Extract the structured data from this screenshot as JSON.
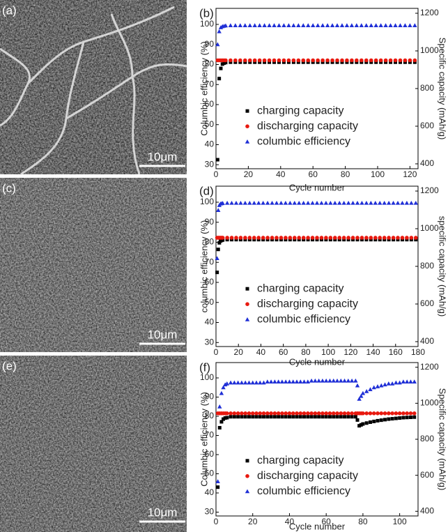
{
  "images": [
    {
      "panel_label": "(a)",
      "scale_bar": "10μm"
    },
    {
      "panel_label": "(c)",
      "scale_bar": "10μm"
    },
    {
      "panel_label": "(e)",
      "scale_bar": "10μm"
    }
  ],
  "chart_data": [
    {
      "type": "scatter",
      "panel_label": "(b)",
      "xlabel": "Cycle number",
      "ylabel": "Columbic efficiency (%)",
      "y2label": "Specific capacity (mAh/g)",
      "xlim": [
        0,
        125
      ],
      "xticks": [
        0,
        20,
        40,
        60,
        80,
        100,
        120
      ],
      "ylim": [
        28,
        108
      ],
      "yticks": [
        30,
        40,
        50,
        60,
        70,
        80,
        90,
        100
      ],
      "y2lim": [
        374,
        1226
      ],
      "y2ticks": [
        400,
        600,
        800,
        1000,
        1200
      ],
      "legend": "center",
      "x": [
        1,
        2,
        3,
        4,
        5,
        6,
        9,
        12,
        15,
        18,
        21,
        24,
        27,
        30,
        33,
        36,
        39,
        42,
        45,
        48,
        51,
        54,
        57,
        60,
        63,
        66,
        69,
        72,
        75,
        78,
        81,
        84,
        87,
        90,
        93,
        96,
        99,
        102,
        105,
        108,
        111,
        114,
        117,
        120,
        123
      ],
      "series": [
        {
          "name": "charging capacity",
          "color": "#000000",
          "marker": "square",
          "axis": "y2",
          "values": [
            422,
            853,
            907,
            930,
            935,
            938,
            940,
            940,
            940,
            940,
            940,
            940,
            940,
            940,
            940,
            940,
            940,
            940,
            940,
            940,
            940,
            940,
            940,
            940,
            940,
            940,
            940,
            940,
            940,
            940,
            940,
            940,
            940,
            940,
            940,
            940,
            940,
            940,
            940,
            940,
            940,
            940,
            940,
            940,
            940
          ]
        },
        {
          "name": "discharging capacity",
          "color": "#e8190f",
          "marker": "circle",
          "axis": "y2",
          "values": [
            950,
            950,
            950,
            950,
            950,
            950,
            950,
            950,
            950,
            950,
            950,
            950,
            950,
            950,
            950,
            950,
            950,
            950,
            950,
            950,
            950,
            950,
            950,
            950,
            950,
            950,
            950,
            950,
            950,
            950,
            950,
            950,
            950,
            950,
            950,
            950,
            950,
            950,
            950,
            950,
            950,
            950,
            950,
            950,
            950
          ]
        },
        {
          "name": "columbic efficiency",
          "color": "#1f2fd6",
          "marker": "triangle",
          "axis": "y",
          "values": [
            90,
            96.5,
            98.5,
            99,
            99.2,
            99.4,
            99.5,
            99.5,
            99.5,
            99.5,
            99.5,
            99.5,
            99.5,
            99.5,
            99.5,
            99.5,
            99.5,
            99.5,
            99.5,
            99.5,
            99.5,
            99.5,
            99.5,
            99.5,
            99.5,
            99.5,
            99.5,
            99.5,
            99.5,
            99.5,
            99.5,
            99.5,
            99.5,
            99.5,
            99.5,
            99.5,
            99.5,
            99.5,
            99.5,
            99.5,
            99.5,
            99.5,
            99.5,
            99.5,
            99.5
          ]
        }
      ]
    },
    {
      "type": "scatter",
      "panel_label": "(d)",
      "xlabel": "Cycle number",
      "ylabel": "columbic efficiency (%)",
      "y2label": "specific capacity (mAh/g)",
      "xlim": [
        0,
        180
      ],
      "xticks": [
        0,
        20,
        40,
        60,
        80,
        100,
        120,
        140,
        160,
        180
      ],
      "ylim": [
        28,
        108
      ],
      "yticks": [
        30,
        40,
        50,
        60,
        70,
        80,
        90,
        100
      ],
      "y2lim": [
        374,
        1226
      ],
      "y2ticks": [
        400,
        600,
        800,
        1000,
        1200
      ],
      "legend": "center",
      "x": [
        1,
        2,
        3,
        4,
        5,
        6,
        10,
        14,
        18,
        22,
        26,
        30,
        34,
        38,
        42,
        46,
        50,
        54,
        58,
        62,
        66,
        70,
        74,
        78,
        82,
        86,
        90,
        94,
        98,
        102,
        106,
        110,
        114,
        118,
        122,
        126,
        130,
        134,
        138,
        142,
        146,
        150,
        154,
        158,
        162,
        166,
        170,
        174,
        178
      ],
      "series": [
        {
          "name": "charging capacity",
          "color": "#000000",
          "marker": "square",
          "axis": "y2",
          "values": [
            768,
            890,
            925,
            935,
            938,
            940,
            942,
            942,
            942,
            942,
            942,
            942,
            942,
            942,
            942,
            942,
            942,
            942,
            942,
            942,
            942,
            942,
            942,
            942,
            942,
            942,
            942,
            942,
            942,
            942,
            942,
            942,
            942,
            942,
            942,
            942,
            942,
            942,
            942,
            942,
            942,
            942,
            942,
            942,
            942,
            942,
            942,
            942,
            942
          ]
        },
        {
          "name": "discharging capacity",
          "color": "#e8190f",
          "marker": "circle",
          "axis": "y2",
          "values": [
            952,
            952,
            952,
            952,
            952,
            952,
            952,
            952,
            952,
            952,
            952,
            952,
            952,
            952,
            952,
            952,
            952,
            952,
            952,
            952,
            952,
            952,
            952,
            952,
            952,
            952,
            952,
            952,
            952,
            952,
            952,
            952,
            952,
            952,
            952,
            952,
            952,
            952,
            952,
            952,
            952,
            952,
            952,
            952,
            952,
            952,
            952,
            952,
            952
          ]
        },
        {
          "name": "columbic efficiency",
          "color": "#1f2fd6",
          "marker": "triangle",
          "axis": "y",
          "values": [
            72,
            96,
            98.5,
            99.2,
            99.4,
            99.5,
            99.6,
            99.6,
            99.6,
            99.6,
            99.6,
            99.6,
            99.6,
            99.6,
            99.6,
            99.6,
            99.6,
            99.6,
            99.6,
            99.6,
            99.6,
            99.6,
            99.6,
            99.6,
            99.6,
            99.6,
            99.6,
            99.6,
            99.6,
            99.6,
            99.6,
            99.6,
            99.6,
            99.6,
            99.6,
            99.6,
            99.6,
            99.6,
            99.6,
            99.6,
            99.6,
            99.6,
            99.6,
            99.6,
            99.6,
            99.6,
            99.6,
            99.6,
            99.6
          ]
        }
      ]
    },
    {
      "type": "scatter",
      "panel_label": "(f)",
      "xlabel": "Cycle number",
      "ylabel": "Columbic efficiency (%)",
      "y2label": "Specific capacity (mAh/g)",
      "xlim": [
        0,
        110
      ],
      "xticks": [
        0,
        20,
        40,
        60,
        80,
        100
      ],
      "ylim": [
        28,
        108
      ],
      "yticks": [
        30,
        40,
        50,
        60,
        70,
        80,
        90,
        100
      ],
      "y2lim": [
        374,
        1226
      ],
      "y2ticks": [
        400,
        600,
        800,
        1000,
        1200
      ],
      "legend": "center",
      "x": [
        1,
        2,
        3,
        4,
        5,
        6,
        8,
        10,
        12,
        14,
        16,
        18,
        20,
        22,
        24,
        26,
        28,
        30,
        32,
        34,
        36,
        38,
        40,
        42,
        44,
        46,
        48,
        50,
        52,
        54,
        56,
        58,
        60,
        62,
        64,
        66,
        68,
        70,
        72,
        74,
        76,
        77,
        78,
        79,
        80,
        82,
        84,
        86,
        88,
        90,
        92,
        94,
        96,
        98,
        100,
        102,
        104,
        106,
        108
      ],
      "series": [
        {
          "name": "charging capacity",
          "color": "#000000",
          "marker": "square",
          "axis": "y2",
          "values": [
            534,
            864,
            897,
            912,
            918,
            920,
            925,
            925,
            925,
            925,
            925,
            925,
            925,
            925,
            925,
            925,
            925,
            925,
            925,
            925,
            925,
            925,
            925,
            925,
            925,
            925,
            925,
            925,
            925,
            925,
            925,
            925,
            925,
            925,
            925,
            925,
            925,
            925,
            925,
            925,
            925,
            907,
            875,
            880,
            885,
            890,
            895,
            899,
            903,
            906,
            909,
            912,
            914,
            916,
            918,
            920,
            921,
            922,
            923
          ]
        },
        {
          "name": "discharging capacity",
          "color": "#e8190f",
          "marker": "circle",
          "axis": "y2",
          "values": [
            944,
            944,
            944,
            944,
            944,
            944,
            944,
            944,
            944,
            944,
            944,
            944,
            944,
            944,
            944,
            944,
            944,
            944,
            944,
            944,
            944,
            944,
            944,
            944,
            944,
            944,
            944,
            944,
            944,
            944,
            944,
            944,
            944,
            944,
            944,
            944,
            944,
            944,
            944,
            944,
            944,
            944,
            944,
            944,
            944,
            944,
            944,
            944,
            944,
            944,
            944,
            944,
            944,
            944,
            944,
            944,
            944,
            944,
            944
          ]
        },
        {
          "name": "columbic efficiency",
          "color": "#1f2fd6",
          "marker": "triangle",
          "axis": "y",
          "values": [
            46,
            85,
            92,
            95,
            96.5,
            97,
            97.5,
            97.5,
            97.5,
            97.5,
            97.5,
            97.5,
            97.5,
            97.5,
            97.5,
            97.5,
            98,
            98,
            98,
            98,
            98,
            98,
            98,
            98,
            98,
            98,
            98,
            98,
            98.5,
            98.5,
            98.5,
            98.5,
            98.5,
            98.5,
            98.5,
            98.5,
            98.5,
            98.5,
            98.5,
            98.5,
            98.5,
            96,
            89,
            90.5,
            92,
            93,
            94,
            95,
            95.5,
            96,
            96.5,
            97,
            97,
            97.5,
            97.5,
            98,
            98,
            98,
            98
          ]
        }
      ]
    }
  ]
}
